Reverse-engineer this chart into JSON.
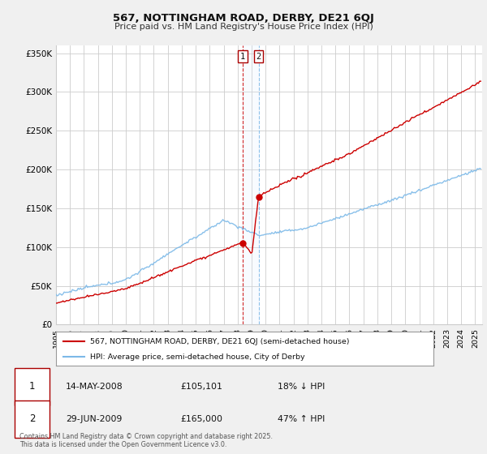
{
  "title": "567, NOTTINGHAM ROAD, DERBY, DE21 6QJ",
  "subtitle": "Price paid vs. HM Land Registry's House Price Index (HPI)",
  "ylabel_ticks": [
    "£0",
    "£50K",
    "£100K",
    "£150K",
    "£200K",
    "£250K",
    "£300K",
    "£350K"
  ],
  "ytick_values": [
    0,
    50000,
    100000,
    150000,
    200000,
    250000,
    300000,
    350000
  ],
  "ylim": [
    0,
    360000
  ],
  "xlim_start": 1995.0,
  "xlim_end": 2025.5,
  "hpi_color": "#7cb9e8",
  "price_color": "#cc0000",
  "marker1_date": 2008.37,
  "marker1_price": 105101,
  "marker2_date": 2009.5,
  "marker2_price": 165000,
  "vline1_color": "#cc0000",
  "vline2_color": "#7cb9e8",
  "span_color": "#ddeeff",
  "legend_line1": "567, NOTTINGHAM ROAD, DERBY, DE21 6QJ (semi-detached house)",
  "legend_line2": "HPI: Average price, semi-detached house, City of Derby",
  "footer": "Contains HM Land Registry data © Crown copyright and database right 2025.\nThis data is licensed under the Open Government Licence v3.0.",
  "bg_color": "#f0f0f0",
  "plot_bg_color": "#ffffff",
  "grid_color": "#cccccc",
  "ann_date1": "14-MAY-2008",
  "ann_price1": "£105,101",
  "ann_pct1": "18% ↓ HPI",
  "ann_date2": "29-JUN-2009",
  "ann_price2": "£165,000",
  "ann_pct2": "47% ↑ HPI"
}
